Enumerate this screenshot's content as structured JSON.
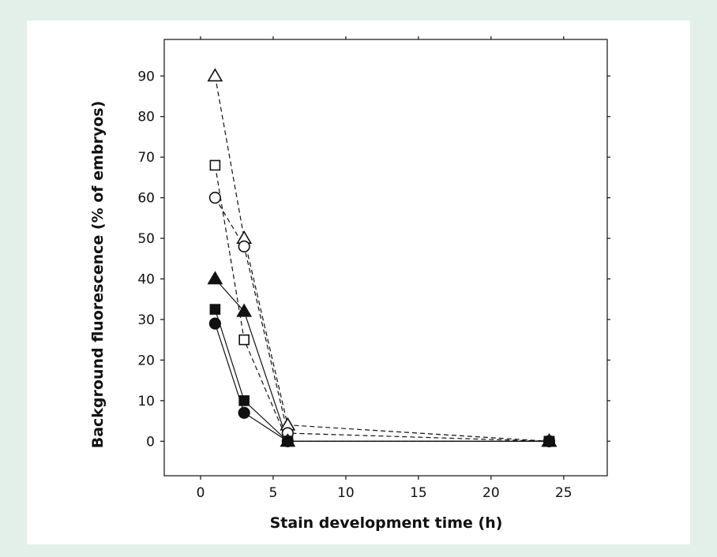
{
  "chart_data": {
    "type": "line",
    "xlabel": "Stain development time (h)",
    "ylabel": "Background fluorescence (% of embryos)",
    "xlim": [
      -2.5,
      28
    ],
    "ylim": [
      -8.5,
      99
    ],
    "xticks": [
      0,
      5,
      10,
      15,
      20,
      25
    ],
    "yticks": [
      0,
      10,
      20,
      30,
      40,
      50,
      60,
      70,
      80,
      90
    ],
    "grid": false,
    "series": [
      {
        "marker": "open-triangle",
        "line": "dashed",
        "x": [
          1,
          3,
          6,
          24
        ],
        "y": [
          90,
          50,
          4,
          0
        ]
      },
      {
        "marker": "open-square",
        "line": "dashed",
        "x": [
          1,
          3,
          6,
          24
        ],
        "y": [
          68,
          25,
          0,
          0
        ]
      },
      {
        "marker": "open-circle",
        "line": "dashed",
        "x": [
          1,
          3,
          6,
          24
        ],
        "y": [
          60,
          48,
          2,
          0
        ]
      },
      {
        "marker": "filled-triangle",
        "line": "solid",
        "x": [
          1,
          3,
          6,
          24
        ],
        "y": [
          40,
          32,
          0,
          0
        ]
      },
      {
        "marker": "filled-square",
        "line": "solid",
        "x": [
          1,
          3,
          6,
          24
        ],
        "y": [
          32.5,
          10,
          0,
          0
        ]
      },
      {
        "marker": "filled-circle",
        "line": "solid",
        "x": [
          1,
          3,
          6,
          24
        ],
        "y": [
          29,
          7,
          0,
          0
        ]
      }
    ]
  }
}
